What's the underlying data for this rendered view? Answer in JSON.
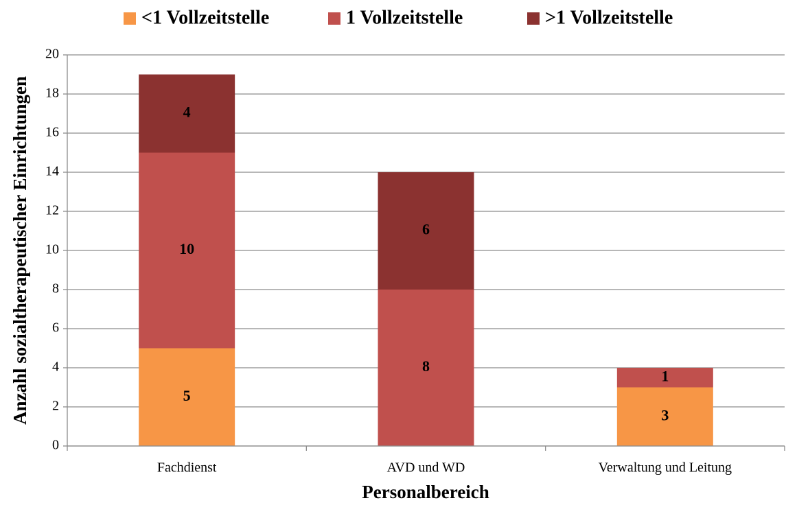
{
  "chart_data": {
    "type": "stacked_bar",
    "categories": [
      "Fachdienst",
      "AVD und WD",
      "Verwaltung und Leitung"
    ],
    "series": [
      {
        "name": "<1 Vollzeitstelle",
        "color": "#f79646",
        "values": [
          5,
          0,
          3
        ]
      },
      {
        "name": "1 Vollzeitstelle",
        "color": "#c0504d",
        "values": [
          10,
          8,
          1
        ]
      },
      {
        "name": ">1 Vollzeitstelle",
        "color": "#8b3230",
        "values": [
          4,
          6,
          0
        ]
      }
    ],
    "ylim": [
      0,
      20
    ],
    "yticks": [
      0,
      2,
      4,
      6,
      8,
      10,
      12,
      14,
      16,
      18,
      20
    ],
    "y_label": "Anzahl sozialtherapeutischer Einrichtungen",
    "x_label": "Personalbereich",
    "grid": true,
    "legend": "top"
  }
}
